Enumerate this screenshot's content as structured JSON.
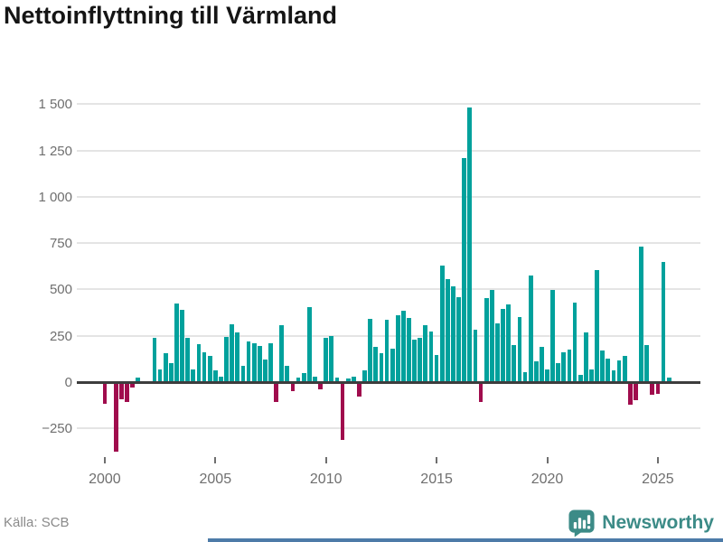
{
  "title": "Nettoinflyttning till Värmland",
  "source": "Källa: SCB",
  "logo": {
    "text": "Newsworthy",
    "color": "#3c8b87"
  },
  "chart_data": {
    "type": "bar",
    "title": "Nettoinflyttning till Värmland",
    "xlabel": "",
    "ylabel": "",
    "frequency": "quarterly",
    "start_period": "2000Q1",
    "end_period": "2025Q3",
    "ylim": [
      -430,
      1560
    ],
    "grid": "horizontal",
    "y_ticks": [
      1500,
      1250,
      1000,
      750,
      500,
      250,
      0,
      -250
    ],
    "y_tick_labels": [
      "1 500",
      "1 250",
      "1 000",
      "750",
      "500",
      "250",
      "0",
      "−250"
    ],
    "x_tick_years": [
      2000,
      2005,
      2010,
      2015,
      2020,
      2025
    ],
    "x_tick_labels": [
      "2000",
      "2005",
      "2010",
      "2015",
      "2020",
      "2025"
    ],
    "positive_color": "#00a19c",
    "negative_color": "#a00c4d",
    "values": [
      -110,
      0,
      -370,
      -90,
      -100,
      -25,
      25,
      0,
      0,
      240,
      70,
      155,
      100,
      425,
      390,
      240,
      70,
      205,
      160,
      140,
      65,
      30,
      245,
      310,
      270,
      90,
      220,
      210,
      195,
      120,
      210,
      -100,
      305,
      90,
      -45,
      25,
      50,
      405,
      30,
      -35,
      240,
      250,
      25,
      -305,
      20,
      30,
      -75,
      65,
      340,
      190,
      155,
      335,
      180,
      360,
      385,
      345,
      230,
      240,
      305,
      275,
      145,
      630,
      555,
      515,
      460,
      1210,
      1480,
      285,
      -100,
      455,
      495,
      315,
      395,
      420,
      200,
      350,
      55,
      575,
      110,
      190,
      70,
      495,
      100,
      160,
      175,
      430,
      40,
      270,
      70,
      605,
      170,
      125,
      65,
      115,
      140,
      -115,
      -95,
      730,
      200,
      -65,
      -60,
      650,
      25
    ]
  }
}
